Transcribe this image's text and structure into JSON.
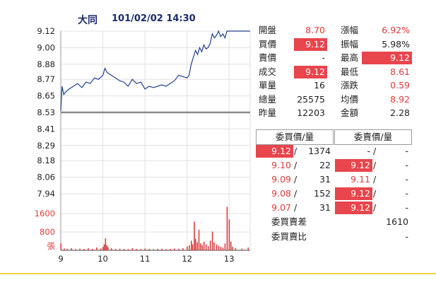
{
  "header": {
    "title": "大同",
    "datetime": "101/02/02 14:30"
  },
  "chart_data": {
    "type": "line",
    "price_axis_ticks": [
      9.12,
      9.0,
      8.88,
      8.77,
      8.65,
      8.53,
      8.41,
      8.29,
      8.18,
      8.06,
      7.94
    ],
    "price_axis_ticks_text": [
      "9.12",
      "9.00",
      "8.88",
      "8.77",
      "8.65",
      "8.53",
      "8.41",
      "8.29",
      "8.18",
      "8.06",
      "7.94"
    ],
    "ylim": [
      7.94,
      9.12
    ],
    "reference_price": 8.53,
    "x_tick_labels": [
      "9",
      "10",
      "11",
      "12",
      "13"
    ],
    "x_range_hours": [
      9,
      13.5
    ],
    "price_series": [
      [
        9.0,
        8.54
      ],
      [
        9.03,
        8.72
      ],
      [
        9.07,
        8.66
      ],
      [
        9.12,
        8.68
      ],
      [
        9.2,
        8.7
      ],
      [
        9.3,
        8.72
      ],
      [
        9.4,
        8.74
      ],
      [
        9.5,
        8.71
      ],
      [
        9.6,
        8.75
      ],
      [
        9.7,
        8.74
      ],
      [
        9.8,
        8.78
      ],
      [
        9.9,
        8.77
      ],
      [
        10.0,
        8.8
      ],
      [
        10.05,
        8.85
      ],
      [
        10.1,
        8.82
      ],
      [
        10.2,
        8.8
      ],
      [
        10.3,
        8.78
      ],
      [
        10.4,
        8.76
      ],
      [
        10.5,
        8.75
      ],
      [
        10.6,
        8.72
      ],
      [
        10.7,
        8.77
      ],
      [
        10.8,
        8.74
      ],
      [
        10.9,
        8.75
      ],
      [
        11.0,
        8.7
      ],
      [
        11.1,
        8.72
      ],
      [
        11.2,
        8.71
      ],
      [
        11.3,
        8.72
      ],
      [
        11.4,
        8.73
      ],
      [
        11.5,
        8.72
      ],
      [
        11.6,
        8.74
      ],
      [
        11.7,
        8.76
      ],
      [
        11.8,
        8.8
      ],
      [
        11.9,
        8.79
      ],
      [
        12.0,
        8.78
      ],
      [
        12.05,
        8.8
      ],
      [
        12.1,
        8.88
      ],
      [
        12.15,
        8.93
      ],
      [
        12.2,
        8.98
      ],
      [
        12.25,
        8.95
      ],
      [
        12.3,
        9.0
      ],
      [
        12.35,
        8.97
      ],
      [
        12.4,
        9.02
      ],
      [
        12.45,
        8.99
      ],
      [
        12.5,
        9.0
      ],
      [
        12.55,
        9.03
      ],
      [
        12.6,
        9.1
      ],
      [
        12.65,
        9.07
      ],
      [
        12.7,
        9.09
      ],
      [
        12.75,
        9.12
      ],
      [
        12.8,
        9.08
      ],
      [
        12.85,
        9.1
      ],
      [
        12.9,
        9.07
      ],
      [
        12.95,
        9.12
      ],
      [
        13.0,
        9.12
      ],
      [
        13.2,
        9.12
      ],
      [
        13.5,
        9.12
      ]
    ],
    "volume_axis_ticks": [
      1600,
      800
    ],
    "volume_axis_ticks_text": [
      "1600",
      "800"
    ],
    "volume_unit_label": "張",
    "volume_max": 2100,
    "volume_series": [
      [
        9.0,
        300
      ],
      [
        9.08,
        80
      ],
      [
        9.15,
        60
      ],
      [
        9.25,
        90
      ],
      [
        9.35,
        50
      ],
      [
        9.45,
        70
      ],
      [
        9.55,
        60
      ],
      [
        9.65,
        90
      ],
      [
        9.75,
        60
      ],
      [
        9.85,
        120
      ],
      [
        9.95,
        80
      ],
      [
        10.0,
        150
      ],
      [
        10.03,
        260
      ],
      [
        10.06,
        520
      ],
      [
        10.09,
        220
      ],
      [
        10.12,
        140
      ],
      [
        10.2,
        90
      ],
      [
        10.3,
        60
      ],
      [
        10.4,
        70
      ],
      [
        10.5,
        60
      ],
      [
        10.6,
        50
      ],
      [
        10.7,
        90
      ],
      [
        10.8,
        60
      ],
      [
        10.9,
        50
      ],
      [
        11.0,
        80
      ],
      [
        11.1,
        60
      ],
      [
        11.2,
        50
      ],
      [
        11.3,
        60
      ],
      [
        11.4,
        70
      ],
      [
        11.5,
        50
      ],
      [
        11.6,
        60
      ],
      [
        11.7,
        80
      ],
      [
        11.8,
        60
      ],
      [
        11.9,
        90
      ],
      [
        12.0,
        160
      ],
      [
        12.05,
        220
      ],
      [
        12.1,
        420
      ],
      [
        12.13,
        260
      ],
      [
        12.17,
        1250
      ],
      [
        12.2,
        500
      ],
      [
        12.24,
        350
      ],
      [
        12.28,
        900
      ],
      [
        12.32,
        300
      ],
      [
        12.36,
        220
      ],
      [
        12.4,
        380
      ],
      [
        12.45,
        260
      ],
      [
        12.5,
        180
      ],
      [
        12.55,
        420
      ],
      [
        12.6,
        820
      ],
      [
        12.64,
        340
      ],
      [
        12.7,
        260
      ],
      [
        12.75,
        200
      ],
      [
        12.8,
        160
      ],
      [
        12.85,
        120
      ],
      [
        12.9,
        300
      ],
      [
        12.95,
        1900
      ],
      [
        13.0,
        1350
      ],
      [
        13.04,
        380
      ],
      [
        13.08,
        150
      ],
      [
        13.15,
        100
      ],
      [
        13.3,
        70
      ],
      [
        13.45,
        120
      ]
    ]
  },
  "quote": {
    "left": [
      {
        "label": "開盤",
        "value": "8.70",
        "style": "red"
      },
      {
        "label": "買價",
        "value": "9.12",
        "style": "boxed"
      },
      {
        "label": "賣價",
        "value": "-",
        "style": "blk"
      },
      {
        "label": "成交",
        "value": "9.12",
        "style": "boxed"
      },
      {
        "label": "單量",
        "value": "16",
        "style": "blk"
      },
      {
        "label": "總量",
        "value": "25575",
        "style": "blk"
      },
      {
        "label": "昨量",
        "value": "12203",
        "style": "blk"
      }
    ],
    "right": [
      {
        "label": "漲幅",
        "value": "6.92%",
        "style": "red"
      },
      {
        "label": "振幅",
        "value": "5.98%",
        "style": "blk"
      },
      {
        "label": "最高",
        "value": "9.12",
        "style": "boxed"
      },
      {
        "label": "最低",
        "value": "8.61",
        "style": "red"
      },
      {
        "label": "漲跌",
        "value": "0.59",
        "style": "red"
      },
      {
        "label": "均價",
        "value": "8.92",
        "style": "red"
      },
      {
        "label": "金額",
        "value": "2.28",
        "style": "blk"
      }
    ]
  },
  "order_book": {
    "bid_header": "委買價/量",
    "ask_header": "委賣價/量",
    "rows": [
      {
        "bid_price": "9.12",
        "bid_style": "boxed",
        "bid_qty": "1374",
        "ask_price": "-",
        "ask_style": "blk",
        "ask_qty": "-"
      },
      {
        "bid_price": "9.10",
        "bid_style": "red",
        "bid_qty": "22",
        "ask_price": "9.12",
        "ask_style": "boxed",
        "ask_qty": "-"
      },
      {
        "bid_price": "9.09",
        "bid_style": "red",
        "bid_qty": "31",
        "ask_price": "9.11",
        "ask_style": "red",
        "ask_qty": "-"
      },
      {
        "bid_price": "9.08",
        "bid_style": "red",
        "bid_qty": "152",
        "ask_price": "9.12",
        "ask_style": "boxed",
        "ask_qty": "-"
      },
      {
        "bid_price": "9.07",
        "bid_style": "red",
        "bid_qty": "31",
        "ask_price": "9.12",
        "ask_style": "boxed",
        "ask_qty": "-"
      }
    ],
    "separator": "/",
    "summary": [
      {
        "label": "委買賣差",
        "value": "1610"
      },
      {
        "label": "委買賣比",
        "value": "-"
      }
    ]
  },
  "colors": {
    "price_line": "#1f3f8f",
    "reference_line": "#8a8a8a",
    "volume_bar": "#d84040",
    "grid": "#e0e0e0",
    "highlight_box": "#e8454d",
    "up_text": "#e03a3a",
    "title": "#1a2a6c",
    "bottom_rule": "#f3d64a"
  }
}
